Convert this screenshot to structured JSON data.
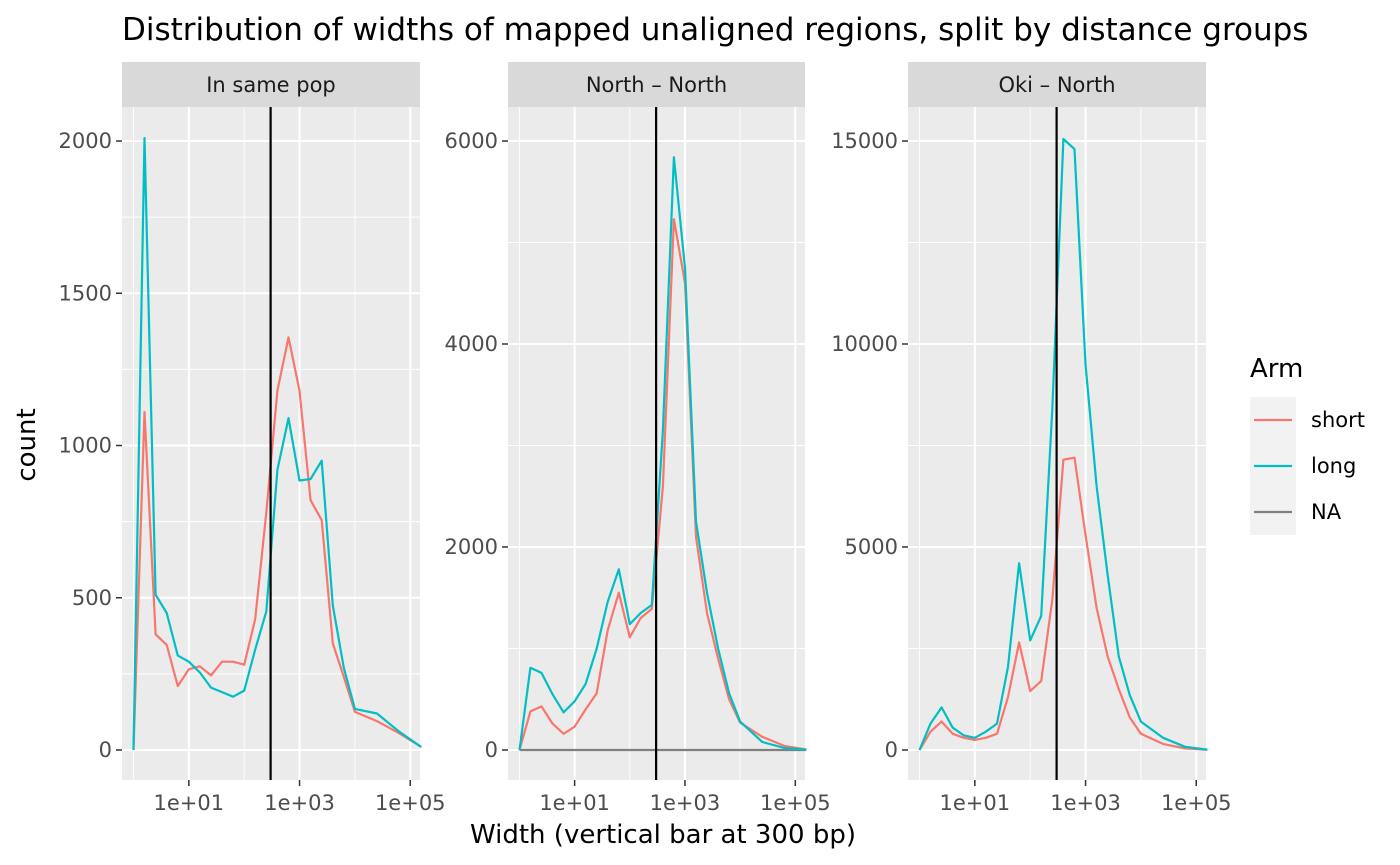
{
  "chart_data": {
    "type": "line",
    "title": "Distribution of widths of mapped unaligned regions, split by distance groups",
    "xlabel": "Width (vertical bar at 300 bp)",
    "ylabel": "count",
    "x_scale": "log10",
    "x_tick_labels": [
      "1e+01",
      "1e+03",
      "1e+05"
    ],
    "x_ticks": [
      10,
      1000,
      100000
    ],
    "xlim": [
      0.62,
      150000
    ],
    "vline": 300,
    "grid": true,
    "legend": {
      "title": "Arm",
      "position": "right",
      "entries": [
        {
          "label": "short",
          "color": "#F8766D"
        },
        {
          "label": "long",
          "color": "#00BFC4"
        },
        {
          "label": "NA",
          "color": "#7F7F7F"
        }
      ]
    },
    "x": [
      1,
      1.58,
      2.51,
      3.98,
      6.31,
      10,
      15.8,
      25.1,
      39.8,
      63.1,
      100,
      158,
      251,
      398,
      631,
      1000,
      1585,
      2512,
      3981,
      6310,
      10000,
      25120,
      63100,
      158500
    ],
    "panels": [
      {
        "label": "In same pop",
        "ylim": [
          0,
          2000
        ],
        "y_ticks": [
          0,
          500,
          1000,
          1500,
          2000
        ],
        "y_tick_labels": [
          "0",
          "500",
          "1000",
          "1500",
          "2000"
        ],
        "series": [
          {
            "name": "short",
            "color": "#F8766D",
            "values": [
              0,
              1110,
              380,
              345,
              210,
              265,
              275,
              245,
              290,
              290,
              280,
              430,
              780,
              1180,
              1355,
              1180,
              820,
              755,
              350,
              240,
              125,
              95,
              55,
              10
            ]
          },
          {
            "name": "long",
            "color": "#00BFC4",
            "values": [
              0,
              2010,
              510,
              450,
              310,
              290,
              255,
              205,
              190,
              175,
              195,
              330,
              455,
              920,
              1090,
              885,
              890,
              950,
              475,
              270,
              135,
              120,
              60,
              10
            ]
          }
        ]
      },
      {
        "label": "North – North",
        "ylim": [
          0,
          6000
        ],
        "y_ticks": [
          0,
          2000,
          4000,
          6000
        ],
        "y_tick_labels": [
          "0",
          "2000",
          "4000",
          "6000"
        ],
        "series": [
          {
            "name": "short",
            "color": "#F8766D",
            "values": [
              0,
              380,
              430,
              260,
              160,
              230,
              400,
              560,
              1180,
              1550,
              1110,
              1300,
              1390,
              2600,
              5230,
              4600,
              2100,
              1350,
              900,
              500,
              270,
              130,
              40,
              5
            ]
          },
          {
            "name": "long",
            "color": "#00BFC4",
            "values": [
              0,
              810,
              760,
              550,
              370,
              480,
              650,
              1000,
              1460,
              1780,
              1240,
              1350,
              1430,
              3150,
              5840,
              4750,
              2250,
              1550,
              1000,
              560,
              280,
              80,
              20,
              3
            ]
          },
          {
            "name": "NA",
            "color": "#7F7F7F",
            "values": [
              0,
              0,
              0,
              0,
              0,
              0,
              0,
              0,
              0,
              0,
              0,
              0,
              0,
              0,
              0,
              0,
              0,
              0,
              0,
              0,
              0,
              0,
              0,
              0
            ]
          }
        ]
      },
      {
        "label": "Oki – North",
        "ylim": [
          0,
          15000
        ],
        "y_ticks": [
          0,
          5000,
          10000,
          15000
        ],
        "y_tick_labels": [
          "0",
          "5000",
          "10000",
          "15000"
        ],
        "series": [
          {
            "name": "short",
            "color": "#F8766D",
            "values": [
              0,
              450,
              700,
              400,
              300,
              250,
              300,
              400,
              1300,
              2650,
              1450,
              1700,
              3700,
              7150,
              7200,
              5300,
              3500,
              2300,
              1500,
              800,
              400,
              150,
              40,
              5
            ]
          },
          {
            "name": "long",
            "color": "#00BFC4",
            "values": [
              0,
              650,
              1050,
              550,
              360,
              300,
              450,
              650,
              2050,
              4600,
              2700,
              3300,
              8400,
              15050,
              14800,
              9500,
              6500,
              4300,
              2300,
              1350,
              700,
              300,
              80,
              10
            ]
          }
        ]
      }
    ]
  }
}
